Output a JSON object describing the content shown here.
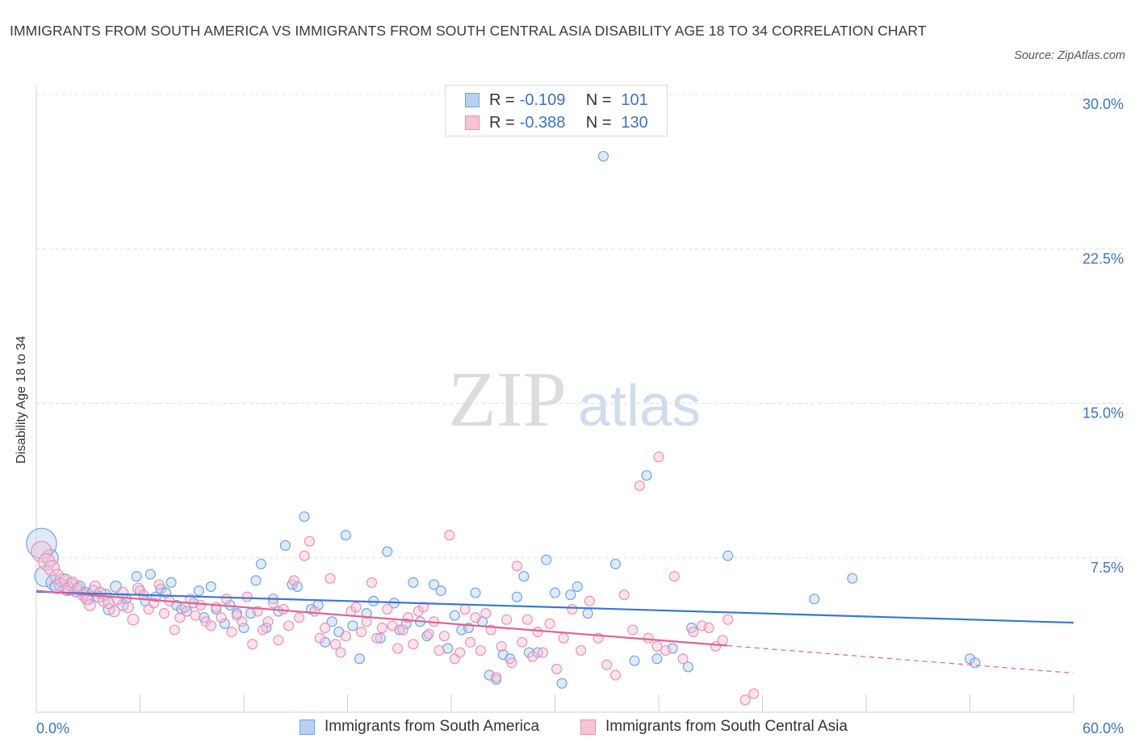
{
  "title": "IMMIGRANTS FROM SOUTH AMERICA VS IMMIGRANTS FROM SOUTH CENTRAL ASIA DISABILITY AGE 18 TO 34 CORRELATION CHART",
  "source": "Source: ZipAtlas.com",
  "watermark": {
    "zip": "ZIP",
    "atlas": "atlas"
  },
  "legend": {
    "rows": [
      {
        "r_label": "R =",
        "r_value": "-0.109",
        "n_label": "N =",
        "n_value": "101"
      },
      {
        "r_label": "R =",
        "r_value": "-0.388",
        "n_label": "N =",
        "n_value": "130"
      }
    ]
  },
  "chart_data": {
    "type": "scatter",
    "ylabel": "Disability Age 18 to 34",
    "xlim": [
      0,
      60
    ],
    "ylim": [
      0,
      30
    ],
    "x_tick_labels": [
      "0.0%",
      "60.0%"
    ],
    "y_ticks": [
      {
        "value": 7.5,
        "label": "7.5%"
      },
      {
        "value": 15,
        "label": "15.0%"
      },
      {
        "value": 22.5,
        "label": "22.5%"
      },
      {
        "value": 30,
        "label": "30.0%"
      }
    ],
    "grid": "horizontal dashed",
    "legend_position": "top-center",
    "series": [
      {
        "name": "Immigrants from South America",
        "color": "#6fa3e6",
        "fill": "#b7d0f3",
        "line_color": "#3a77d0",
        "R": -0.109,
        "N": 101,
        "trend": {
          "x0": 0,
          "y0": 5.85,
          "x1": 60,
          "y1": 4.35,
          "dashed_from": null
        },
        "points": [
          [
            0.3,
            8.2,
            2.2
          ],
          [
            0.5,
            6.6,
            1.5
          ],
          [
            0.8,
            7.5,
            1.2
          ],
          [
            1.0,
            6.3,
            1.1
          ],
          [
            1.2,
            6.1,
            1.0
          ],
          [
            1.5,
            6.4,
            1.0
          ],
          [
            1.8,
            6.0,
            1.0
          ],
          [
            2.0,
            6.2,
            0.9
          ],
          [
            2.3,
            5.9,
            0.9
          ],
          [
            2.5,
            6.1,
            0.8
          ],
          [
            2.8,
            5.8,
            0.8
          ],
          [
            3.0,
            5.5,
            0.8
          ],
          [
            3.3,
            5.9,
            0.8
          ],
          [
            3.6,
            5.6,
            0.8
          ],
          [
            4.0,
            5.7,
            0.8
          ],
          [
            4.2,
            5.0,
            0.8
          ],
          [
            4.6,
            6.1,
            0.8
          ],
          [
            5.0,
            5.2,
            0.8
          ],
          [
            5.2,
            5.5,
            0.7
          ],
          [
            5.8,
            6.6,
            0.7
          ],
          [
            6.0,
            5.9,
            0.7
          ],
          [
            6.3,
            5.4,
            0.7
          ],
          [
            6.6,
            6.7,
            0.7
          ],
          [
            6.9,
            5.6,
            0.7
          ],
          [
            7.2,
            6.0,
            0.7
          ],
          [
            7.5,
            5.8,
            0.7
          ],
          [
            7.8,
            6.3,
            0.7
          ],
          [
            8.1,
            5.2,
            0.7
          ],
          [
            8.4,
            5.0,
            0.7
          ],
          [
            8.7,
            4.9,
            0.7
          ],
          [
            9.1,
            5.3,
            0.7
          ],
          [
            9.4,
            5.9,
            0.7
          ],
          [
            9.7,
            4.6,
            0.7
          ],
          [
            10.1,
            6.1,
            0.7
          ],
          [
            10.4,
            5.0,
            0.7
          ],
          [
            10.9,
            4.3,
            0.7
          ],
          [
            11.2,
            5.2,
            0.7
          ],
          [
            11.6,
            4.8,
            0.7
          ],
          [
            12.0,
            4.1,
            0.7
          ],
          [
            12.4,
            4.8,
            0.7
          ],
          [
            12.7,
            6.4,
            0.7
          ],
          [
            13.0,
            7.2,
            0.7
          ],
          [
            13.3,
            4.1,
            0.7
          ],
          [
            13.7,
            5.5,
            0.7
          ],
          [
            14.0,
            4.9,
            0.7
          ],
          [
            14.4,
            8.1,
            0.7
          ],
          [
            14.8,
            6.2,
            0.7
          ],
          [
            15.1,
            6.1,
            0.7
          ],
          [
            15.5,
            9.5,
            0.7
          ],
          [
            15.9,
            5.0,
            0.7
          ],
          [
            16.3,
            5.2,
            0.7
          ],
          [
            16.7,
            3.4,
            0.7
          ],
          [
            17.1,
            4.4,
            0.7
          ],
          [
            17.5,
            3.9,
            0.7
          ],
          [
            17.9,
            8.6,
            0.7
          ],
          [
            18.3,
            4.2,
            0.7
          ],
          [
            18.7,
            2.6,
            0.7
          ],
          [
            19.1,
            4.8,
            0.7
          ],
          [
            19.5,
            5.4,
            0.7
          ],
          [
            19.9,
            3.6,
            0.7
          ],
          [
            20.3,
            7.8,
            0.7
          ],
          [
            20.7,
            5.3,
            0.7
          ],
          [
            21.0,
            4.0,
            0.7
          ],
          [
            21.4,
            4.3,
            0.7
          ],
          [
            21.8,
            6.3,
            0.7
          ],
          [
            22.2,
            4.4,
            0.7
          ],
          [
            22.6,
            3.7,
            0.7
          ],
          [
            23.0,
            6.2,
            0.7
          ],
          [
            23.4,
            5.9,
            0.7
          ],
          [
            23.8,
            3.1,
            0.7
          ],
          [
            24.2,
            4.7,
            0.7
          ],
          [
            24.6,
            4.0,
            0.7
          ],
          [
            25.0,
            4.1,
            0.7
          ],
          [
            25.4,
            5.8,
            0.7
          ],
          [
            25.8,
            4.4,
            0.7
          ],
          [
            26.2,
            1.8,
            0.7
          ],
          [
            26.6,
            1.6,
            0.7
          ],
          [
            27.0,
            2.8,
            0.7
          ],
          [
            27.4,
            2.6,
            0.7
          ],
          [
            27.8,
            5.6,
            0.7
          ],
          [
            28.2,
            6.6,
            0.7
          ],
          [
            28.5,
            2.9,
            0.7
          ],
          [
            29.0,
            2.9,
            0.7
          ],
          [
            29.5,
            7.4,
            0.7
          ],
          [
            30.0,
            5.8,
            0.7
          ],
          [
            30.4,
            1.4,
            0.7
          ],
          [
            30.9,
            5.7,
            0.7
          ],
          [
            31.3,
            6.1,
            0.7
          ],
          [
            31.9,
            4.8,
            0.7
          ],
          [
            32.8,
            27.0,
            0.7
          ],
          [
            33.5,
            7.2,
            0.7
          ],
          [
            34.6,
            2.5,
            0.7
          ],
          [
            35.3,
            11.5,
            0.7
          ],
          [
            35.9,
            2.6,
            0.7
          ],
          [
            36.8,
            3.1,
            0.7
          ],
          [
            37.7,
            2.2,
            0.7
          ],
          [
            37.9,
            4.1,
            0.7
          ],
          [
            40.0,
            7.6,
            0.7
          ],
          [
            45.0,
            5.5,
            0.7
          ],
          [
            47.2,
            6.5,
            0.7
          ],
          [
            54.0,
            2.6,
            0.7
          ],
          [
            54.3,
            2.4,
            0.7
          ]
        ]
      },
      {
        "name": "Immigrants from South Central Asia",
        "color": "#ec8fb0",
        "fill": "#f6c4d5",
        "line_color": "#e0628e",
        "R": -0.388,
        "N": 130,
        "trend": {
          "x0": 0,
          "y0": 5.9,
          "x1": 60,
          "y1": 1.9,
          "solid_until_x": 40
        },
        "points": [
          [
            0.3,
            7.8,
            1.5
          ],
          [
            0.6,
            7.3,
            1.2
          ],
          [
            0.9,
            7.0,
            1.1
          ],
          [
            1.2,
            6.6,
            1.0
          ],
          [
            1.4,
            6.2,
            0.9
          ],
          [
            1.7,
            6.4,
            0.9
          ],
          [
            1.9,
            6.0,
            0.9
          ],
          [
            2.1,
            6.3,
            0.8
          ],
          [
            2.4,
            6.0,
            0.8
          ],
          [
            2.7,
            5.7,
            0.8
          ],
          [
            2.9,
            5.5,
            0.8
          ],
          [
            3.1,
            5.2,
            0.8
          ],
          [
            3.4,
            6.1,
            0.8
          ],
          [
            3.7,
            5.8,
            0.8
          ],
          [
            3.9,
            5.4,
            0.8
          ],
          [
            4.2,
            5.3,
            0.8
          ],
          [
            4.5,
            4.9,
            0.8
          ],
          [
            4.7,
            5.5,
            0.8
          ],
          [
            5.0,
            5.8,
            0.8
          ],
          [
            5.3,
            5.1,
            0.8
          ],
          [
            5.6,
            4.5,
            0.8
          ],
          [
            5.9,
            6.0,
            0.8
          ],
          [
            6.2,
            5.7,
            0.7
          ],
          [
            6.5,
            5.0,
            0.7
          ],
          [
            6.8,
            5.3,
            0.7
          ],
          [
            7.1,
            6.2,
            0.7
          ],
          [
            7.4,
            4.8,
            0.7
          ],
          [
            7.7,
            5.4,
            0.7
          ],
          [
            8.0,
            4.0,
            0.7
          ],
          [
            8.3,
            4.6,
            0.7
          ],
          [
            8.6,
            5.1,
            0.7
          ],
          [
            8.9,
            5.5,
            0.7
          ],
          [
            9.2,
            4.7,
            0.7
          ],
          [
            9.5,
            5.2,
            0.7
          ],
          [
            9.8,
            4.4,
            0.7
          ],
          [
            10.1,
            4.2,
            0.7
          ],
          [
            10.4,
            5.1,
            0.7
          ],
          [
            10.7,
            4.6,
            0.7
          ],
          [
            11.0,
            5.5,
            0.7
          ],
          [
            11.3,
            3.9,
            0.7
          ],
          [
            11.6,
            4.7,
            0.7
          ],
          [
            11.9,
            4.4,
            0.7
          ],
          [
            12.2,
            5.6,
            0.7
          ],
          [
            12.5,
            3.3,
            0.7
          ],
          [
            12.8,
            4.9,
            0.7
          ],
          [
            13.1,
            4.0,
            0.7
          ],
          [
            13.4,
            4.4,
            0.7
          ],
          [
            13.7,
            5.3,
            0.7
          ],
          [
            14.0,
            3.5,
            0.7
          ],
          [
            14.3,
            5.0,
            0.7
          ],
          [
            14.6,
            4.2,
            0.7
          ],
          [
            14.9,
            6.4,
            0.7
          ],
          [
            15.2,
            4.6,
            0.7
          ],
          [
            15.5,
            7.6,
            0.7
          ],
          [
            15.8,
            8.3,
            0.7
          ],
          [
            16.1,
            4.9,
            0.7
          ],
          [
            16.4,
            3.6,
            0.7
          ],
          [
            16.7,
            4.1,
            0.7
          ],
          [
            17.0,
            6.5,
            0.7
          ],
          [
            17.3,
            3.3,
            0.7
          ],
          [
            17.6,
            2.9,
            0.7
          ],
          [
            17.9,
            3.7,
            0.7
          ],
          [
            18.2,
            4.9,
            0.7
          ],
          [
            18.5,
            5.1,
            0.7
          ],
          [
            18.8,
            3.9,
            0.7
          ],
          [
            19.1,
            4.4,
            0.7
          ],
          [
            19.4,
            6.3,
            0.7
          ],
          [
            19.7,
            3.6,
            0.7
          ],
          [
            20.0,
            4.1,
            0.7
          ],
          [
            20.3,
            5.0,
            0.7
          ],
          [
            20.6,
            4.2,
            0.7
          ],
          [
            20.9,
            3.1,
            0.7
          ],
          [
            21.2,
            4.0,
            0.7
          ],
          [
            21.5,
            4.6,
            0.7
          ],
          [
            21.8,
            3.3,
            0.7
          ],
          [
            22.1,
            4.9,
            0.7
          ],
          [
            22.4,
            5.1,
            0.7
          ],
          [
            22.7,
            3.8,
            0.7
          ],
          [
            23.0,
            4.4,
            0.7
          ],
          [
            23.3,
            3.0,
            0.7
          ],
          [
            23.6,
            3.7,
            0.7
          ],
          [
            23.9,
            8.6,
            0.7
          ],
          [
            24.2,
            2.6,
            0.7
          ],
          [
            24.5,
            2.9,
            0.7
          ],
          [
            24.8,
            5.0,
            0.7
          ],
          [
            25.1,
            3.4,
            0.7
          ],
          [
            25.4,
            4.6,
            0.7
          ],
          [
            25.7,
            3.0,
            0.7
          ],
          [
            26.0,
            4.8,
            0.7
          ],
          [
            26.3,
            4.0,
            0.7
          ],
          [
            26.6,
            1.7,
            0.7
          ],
          [
            26.9,
            3.2,
            0.7
          ],
          [
            27.2,
            4.5,
            0.7
          ],
          [
            27.5,
            2.4,
            0.7
          ],
          [
            27.8,
            7.1,
            0.7
          ],
          [
            28.1,
            3.4,
            0.7
          ],
          [
            28.4,
            4.5,
            0.7
          ],
          [
            28.7,
            2.7,
            0.7
          ],
          [
            29.0,
            3.9,
            0.7
          ],
          [
            29.3,
            2.9,
            0.7
          ],
          [
            29.7,
            4.3,
            0.7
          ],
          [
            30.1,
            2.1,
            0.7
          ],
          [
            30.5,
            3.6,
            0.7
          ],
          [
            31.0,
            5.0,
            0.7
          ],
          [
            31.5,
            3.0,
            0.7
          ],
          [
            32.0,
            5.4,
            0.7
          ],
          [
            32.5,
            3.6,
            0.7
          ],
          [
            33.0,
            2.3,
            0.7
          ],
          [
            33.5,
            1.8,
            0.7
          ],
          [
            34.0,
            5.7,
            0.7
          ],
          [
            34.5,
            4.0,
            0.7
          ],
          [
            34.9,
            11.0,
            0.7
          ],
          [
            35.4,
            3.6,
            0.7
          ],
          [
            35.9,
            3.2,
            0.7
          ],
          [
            36.4,
            3.0,
            0.7
          ],
          [
            36.9,
            6.6,
            0.7
          ],
          [
            37.4,
            2.6,
            0.7
          ],
          [
            38.0,
            3.9,
            0.7
          ],
          [
            38.5,
            4.2,
            0.7
          ],
          [
            38.9,
            4.1,
            0.7
          ],
          [
            39.3,
            3.2,
            0.7
          ],
          [
            39.7,
            3.5,
            0.7
          ],
          [
            40.0,
            4.5,
            0.7
          ],
          [
            36.0,
            12.4,
            0.7
          ],
          [
            41.0,
            0.6,
            0.7
          ],
          [
            41.5,
            0.9,
            0.7
          ]
        ]
      }
    ]
  },
  "bottom_legend": {
    "items": [
      {
        "label": "Immigrants from South America"
      },
      {
        "label": "Immigrants from South Central Asia"
      }
    ]
  }
}
